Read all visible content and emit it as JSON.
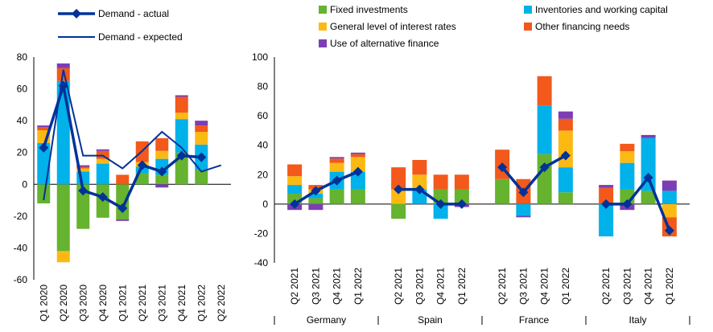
{
  "colors": {
    "fixed_investments": "#65B32E",
    "inventories": "#00B1EA",
    "interest_rates": "#FDB913",
    "other_financing": "#F2591A",
    "alt_finance": "#7D3DB5",
    "demand_line": "#003299"
  },
  "left_legend": {
    "actual": "Demand - actual",
    "expected": "Demand - expected"
  },
  "right_legend": {
    "fixed_investments": "Fixed investments",
    "inventories": "Inventories and working capital",
    "interest_rates": "General level of interest rates",
    "other_financing": "Other financing needs",
    "alt_finance": "Use of alternative finance"
  },
  "chart_data": [
    {
      "type": "bar",
      "stacked": true,
      "ylim": [
        -60,
        80
      ],
      "yticks": [
        -60,
        -40,
        -20,
        0,
        20,
        40,
        60,
        80
      ],
      "categories": [
        "Q1 2020",
        "Q2 2020",
        "Q3 2020",
        "Q4 2020",
        "Q1 2021",
        "Q2 2021",
        "Q3 2021",
        "Q4 2021",
        "Q1 2022",
        "Q2 2022"
      ],
      "series": [
        {
          "key": "fixed_investments",
          "values": [
            -12,
            -42,
            -28,
            -21,
            -22,
            7,
            6,
            20,
            9,
            null
          ]
        },
        {
          "key": "inventories",
          "values": [
            26,
            65,
            8,
            13,
            0,
            4,
            10,
            21,
            16,
            null
          ]
        },
        {
          "key": "interest_rates",
          "values": [
            8,
            -7,
            2,
            3,
            0,
            3,
            5,
            4,
            8,
            null
          ]
        },
        {
          "key": "other_financing",
          "values": [
            2,
            8,
            1,
            5,
            6,
            13,
            8,
            10,
            4,
            null
          ]
        },
        {
          "key": "alt_finance",
          "values": [
            1,
            3,
            1,
            1,
            -1,
            0,
            -2,
            1,
            3,
            null
          ]
        }
      ],
      "lines": [
        {
          "key": "actual",
          "values": [
            23,
            62,
            -4,
            -8,
            -15,
            12,
            8,
            18,
            17,
            null
          ]
        },
        {
          "key": "expected",
          "values": [
            -10,
            72,
            18,
            18,
            10,
            21,
            33,
            23,
            8,
            12
          ]
        }
      ]
    },
    {
      "type": "bar",
      "stacked": true,
      "ylim": [
        -40,
        100
      ],
      "yticks": [
        -40,
        -20,
        0,
        20,
        40,
        60,
        80,
        100
      ],
      "groups": [
        {
          "name": "Germany",
          "categories": [
            "Q2 2021",
            "Q3 2021",
            "Q4 2021",
            "Q1 2022"
          ],
          "fixed_investments": [
            7,
            4,
            10,
            10
          ],
          "inventories": [
            6,
            3,
            12,
            12
          ],
          "interest_rates": [
            6,
            3,
            6,
            10
          ],
          "other_financing": [
            8,
            3,
            3,
            2
          ],
          "alt_finance": [
            -4,
            -4,
            1,
            1
          ],
          "actual": [
            0,
            9,
            16,
            22
          ]
        },
        {
          "name": "Spain",
          "categories": [
            "Q2 2021",
            "Q3 2021",
            "Q4 2021",
            "Q1 2022"
          ],
          "fixed_investments": [
            -10,
            0,
            10,
            10
          ],
          "inventories": [
            0,
            10,
            -10,
            0
          ],
          "interest_rates": [
            10,
            10,
            0,
            0
          ],
          "other_financing": [
            15,
            10,
            10,
            10
          ],
          "alt_finance": [
            0,
            0,
            0,
            -2
          ],
          "actual": [
            10,
            10,
            0,
            0
          ]
        },
        {
          "name": "France",
          "categories": [
            "Q2 2021",
            "Q3 2021",
            "Q4 2021",
            "Q1 2022"
          ],
          "fixed_investments": [
            17,
            0,
            34,
            8
          ],
          "inventories": [
            0,
            -8,
            33,
            17
          ],
          "interest_rates": [
            0,
            0,
            0,
            25
          ],
          "other_financing": [
            20,
            17,
            20,
            8
          ],
          "alt_finance": [
            0,
            -1,
            0,
            5
          ],
          "actual": [
            25,
            8,
            25,
            33
          ]
        },
        {
          "name": "Italy",
          "categories": [
            "Q2 2021",
            "Q3 2021",
            "Q4 2021",
            "Q1 2022"
          ],
          "fixed_investments": [
            0,
            10,
            9,
            0
          ],
          "inventories": [
            -22,
            18,
            36,
            9
          ],
          "interest_rates": [
            0,
            8,
            0,
            -9
          ],
          "other_financing": [
            11,
            5,
            0,
            -13
          ],
          "alt_finance": [
            2,
            -4,
            2,
            7
          ],
          "actual": [
            0,
            0,
            18,
            -18
          ]
        }
      ]
    }
  ]
}
